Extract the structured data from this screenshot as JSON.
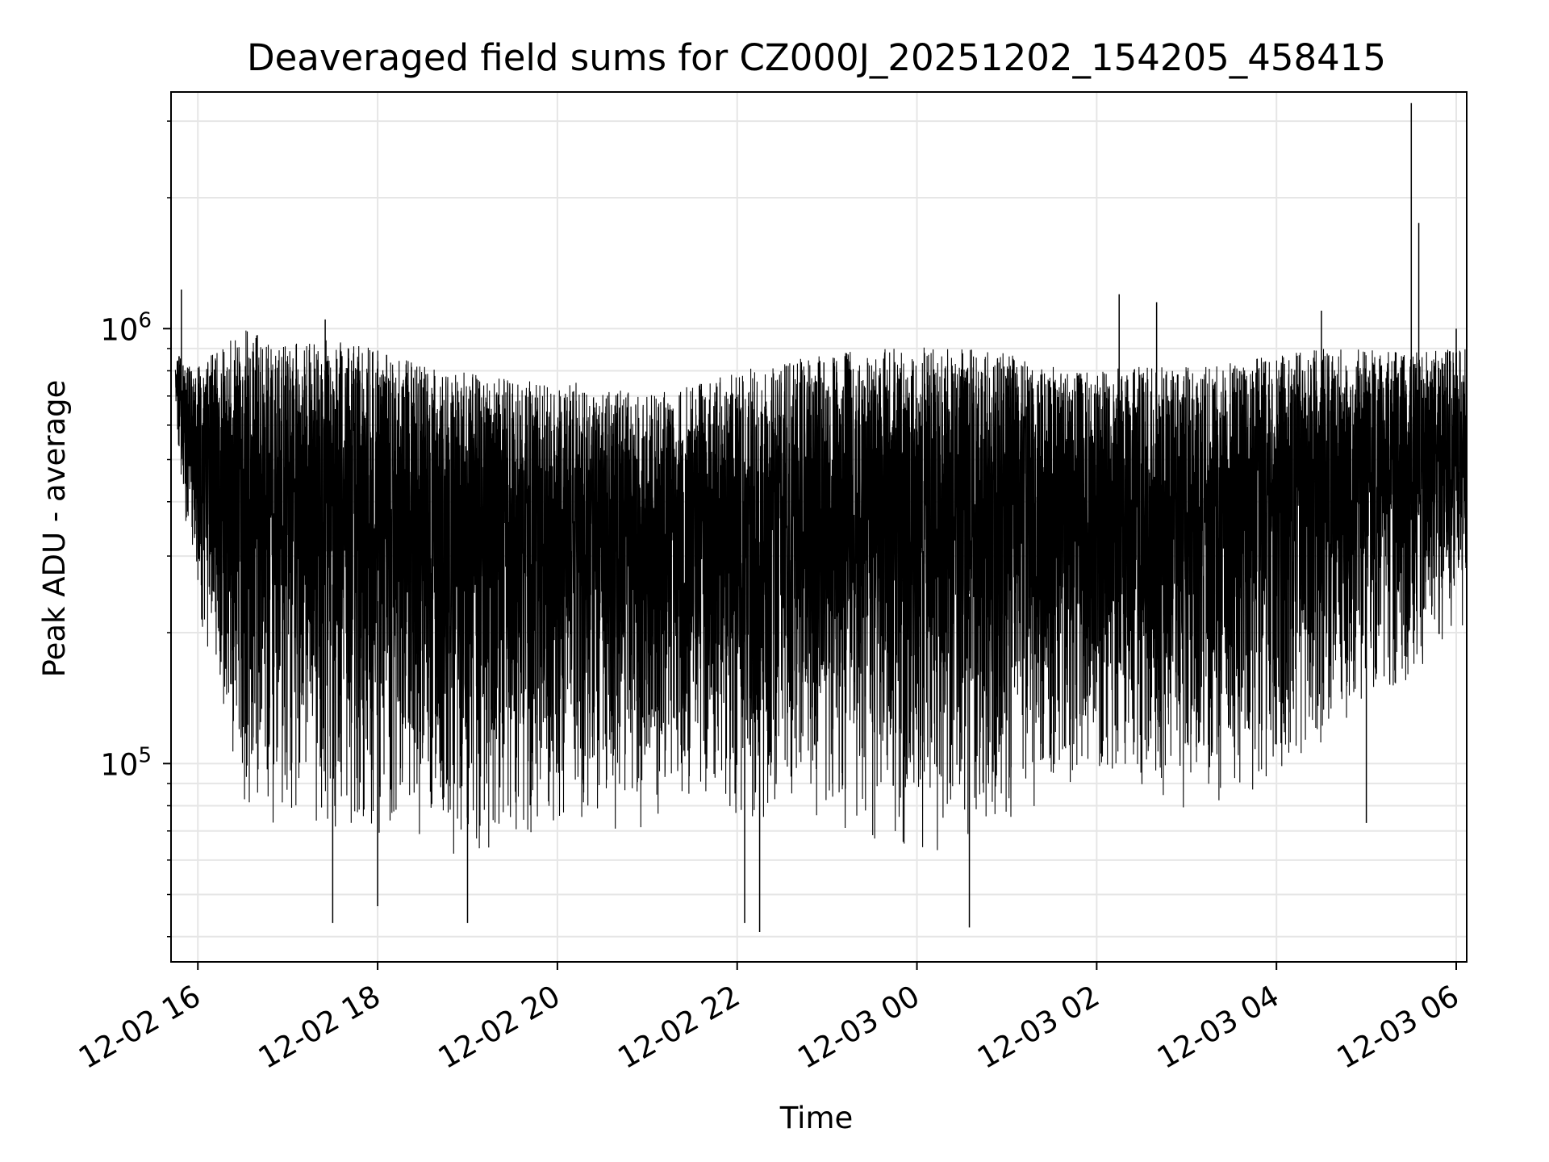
{
  "chart_data": {
    "type": "line",
    "title": "Deaveraged field sums for CZ000J_20251202_154205_458415",
    "xlabel": "Time",
    "ylabel": "Peak ADU - average",
    "yscale": "log",
    "xlim": [
      "2025-12-02T15:42:05",
      "2025-12-03T06:07:00"
    ],
    "ylim": [
      35000,
      3500000
    ],
    "x_ticks": [
      {
        "time": "2025-12-02T16:00:00",
        "label": "12-02 16"
      },
      {
        "time": "2025-12-02T18:00:00",
        "label": "12-02 18"
      },
      {
        "time": "2025-12-02T20:00:00",
        "label": "12-02 20"
      },
      {
        "time": "2025-12-02T22:00:00",
        "label": "12-02 22"
      },
      {
        "time": "2025-12-03T00:00:00",
        "label": "12-03 00"
      },
      {
        "time": "2025-12-03T02:00:00",
        "label": "12-03 02"
      },
      {
        "time": "2025-12-03T04:00:00",
        "label": "12-03 04"
      },
      {
        "time": "2025-12-03T06:00:00",
        "label": "12-03 06"
      }
    ],
    "y_ticks": [
      {
        "value": 100000,
        "base": "10",
        "exp": "5"
      },
      {
        "value": 1000000,
        "base": "10",
        "exp": "6"
      }
    ],
    "grid": true,
    "line_color": "#000000",
    "grid_color": "#e6e6e6",
    "series": [
      {
        "name": "",
        "envelope": [
          {
            "time": "2025-12-02T15:45:00",
            "min": 600000,
            "max": 880000
          },
          {
            "time": "2025-12-02T16:00:00",
            "min": 200000,
            "max": 820000
          },
          {
            "time": "2025-12-02T16:30:00",
            "min": 70000,
            "max": 1000000
          },
          {
            "time": "2025-12-02T17:00:00",
            "min": 70000,
            "max": 920000
          },
          {
            "time": "2025-12-02T17:30:00",
            "min": 70000,
            "max": 950000
          },
          {
            "time": "2025-12-02T18:00:00",
            "min": 62000,
            "max": 900000
          },
          {
            "time": "2025-12-02T18:30:00",
            "min": 62000,
            "max": 820000
          },
          {
            "time": "2025-12-02T19:00:00",
            "min": 60000,
            "max": 800000
          },
          {
            "time": "2025-12-02T19:30:00",
            "min": 62000,
            "max": 760000
          },
          {
            "time": "2025-12-02T20:00:00",
            "min": 65000,
            "max": 760000
          },
          {
            "time": "2025-12-02T20:30:00",
            "min": 65000,
            "max": 740000
          },
          {
            "time": "2025-12-02T21:00:00",
            "min": 68000,
            "max": 700000
          },
          {
            "time": "2025-12-02T21:30:00",
            "min": 75000,
            "max": 740000
          },
          {
            "time": "2025-12-02T22:00:00",
            "min": 72000,
            "max": 800000
          },
          {
            "time": "2025-12-02T22:30:00",
            "min": 70000,
            "max": 840000
          },
          {
            "time": "2025-12-02T23:00:00",
            "min": 66000,
            "max": 870000
          },
          {
            "time": "2025-12-02T23:30:00",
            "min": 64000,
            "max": 900000
          },
          {
            "time": "2025-12-03T00:00:00",
            "min": 62000,
            "max": 920000
          },
          {
            "time": "2025-12-03T00:30:00",
            "min": 64000,
            "max": 900000
          },
          {
            "time": "2025-12-03T01:00:00",
            "min": 72000,
            "max": 880000
          },
          {
            "time": "2025-12-03T01:30:00",
            "min": 80000,
            "max": 820000
          },
          {
            "time": "2025-12-03T02:00:00",
            "min": 85000,
            "max": 800000
          },
          {
            "time": "2025-12-03T02:30:00",
            "min": 80000,
            "max": 820000
          },
          {
            "time": "2025-12-03T03:00:00",
            "min": 75000,
            "max": 820000
          },
          {
            "time": "2025-12-03T03:30:00",
            "min": 80000,
            "max": 840000
          },
          {
            "time": "2025-12-03T04:00:00",
            "min": 90000,
            "max": 870000
          },
          {
            "time": "2025-12-03T04:30:00",
            "min": 110000,
            "max": 900000
          },
          {
            "time": "2025-12-03T05:00:00",
            "min": 130000,
            "max": 900000
          },
          {
            "time": "2025-12-03T05:30:00",
            "min": 150000,
            "max": 880000
          },
          {
            "time": "2025-12-03T06:00:00",
            "min": 200000,
            "max": 900000
          }
        ],
        "extremes": [
          {
            "time": "2025-12-02T15:49:00",
            "value": 1230000
          },
          {
            "time": "2025-12-02T17:25:00",
            "value": 1050000
          },
          {
            "time": "2025-12-02T17:30:00",
            "value": 43000
          },
          {
            "time": "2025-12-02T18:00:00",
            "value": 47000
          },
          {
            "time": "2025-12-02T19:00:00",
            "value": 43000
          },
          {
            "time": "2025-12-02T22:05:00",
            "value": 43000
          },
          {
            "time": "2025-12-02T22:15:00",
            "value": 41000
          },
          {
            "time": "2025-12-03T00:35:00",
            "value": 42000
          },
          {
            "time": "2025-12-03T02:15:00",
            "value": 1200000
          },
          {
            "time": "2025-12-03T02:40:00",
            "value": 1150000
          },
          {
            "time": "2025-12-03T04:30:00",
            "value": 1100000
          },
          {
            "time": "2025-12-03T05:00:00",
            "value": 73000
          },
          {
            "time": "2025-12-03T05:30:00",
            "value": 3300000
          },
          {
            "time": "2025-12-03T05:35:00",
            "value": 1750000
          },
          {
            "time": "2025-12-03T06:00:00",
            "value": 1000000
          }
        ]
      }
    ]
  }
}
